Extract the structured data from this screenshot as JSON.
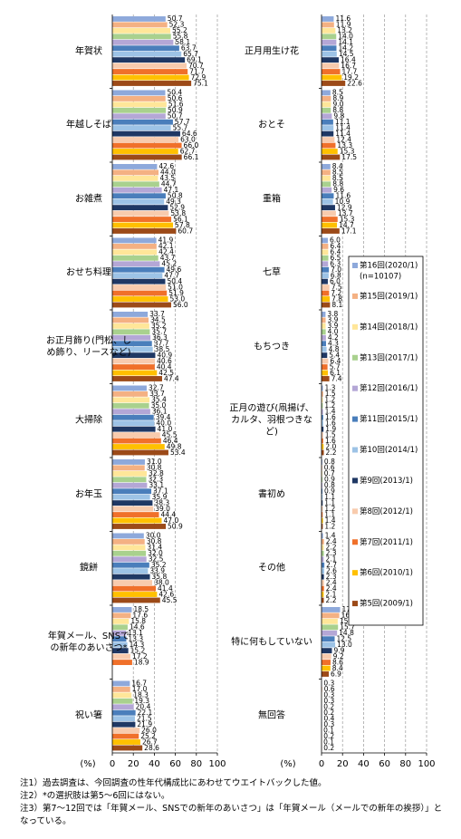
{
  "chart_data": {
    "type": "bar",
    "orientation": "horizontal",
    "categories": [
      "年賀状",
      "年越しそば",
      "お雑煮",
      "おせち料理",
      "お正月飾り(門松、しめ飾り、リースなど)",
      "大掃除",
      "お年玉",
      "鏡餅",
      "年賀メール、SNSでの新年のあいさつ*",
      "祝い箸",
      "正月用生け花",
      "おとそ",
      "重箱",
      "七草",
      "もちつき",
      "正月の遊び(凧揚げ、カルタ、羽根つきなど)",
      "書初め",
      "その他",
      "特に何もしていない",
      "無回答"
    ],
    "xlabel": "(%)",
    "xlim": [
      0,
      100
    ],
    "xticks": [
      0,
      20,
      40,
      60,
      80,
      100
    ],
    "grid": true,
    "series": [
      {
        "name": "第16回(2020/1)",
        "note": "(n=10107)",
        "color": "#8ea9db",
        "values": [
          50.7,
          50.4,
          42.6,
          41.9,
          33.7,
          32.7,
          31.0,
          30.0,
          18.5,
          16.7,
          11.6,
          8.5,
          8.4,
          6.0,
          3.8,
          1.3,
          0.8,
          1.4,
          17.7,
          0.3
        ],
        "value_labels": [
          "50.7",
          "50.4",
          "42.6",
          "41.9",
          "33.7",
          "32.7",
          "31.0",
          "30.0",
          "18.5",
          "16.7",
          "11.6",
          "8.5",
          "8.4",
          "6.0",
          "3.8",
          "1.3",
          "0.8",
          "1.4",
          "17.7",
          "0.3"
        ]
      },
      {
        "name": "第15回(2019/1)",
        "color": "#f4b183",
        "values": [
          52.3,
          50.6,
          44.0,
          42.1,
          34.5,
          33.7,
          30.8,
          30.8,
          17.6,
          17.0,
          11.9,
          8.9,
          8.5,
          6.4,
          3.9,
          1.5,
          0.6,
          2.4,
          16.9,
          0.6
        ],
        "value_labels": [
          "52.3",
          "50.6",
          "44.0",
          "42.1",
          "34.5",
          "33.7",
          "30.8",
          "30.8",
          "17.6",
          "17.0",
          "11.9",
          "8.9",
          "8.5",
          "6.4",
          "3.9",
          "1.5",
          "0.6",
          "2.4",
          "16.9",
          "0.6"
        ]
      },
      {
        "name": "第14回(2018/1)",
        "color": "#ffe699",
        "values": [
          55.2,
          51.6,
          43.5,
          42.4,
          35.2,
          35.4,
          32.8,
          31.4,
          15.8,
          18.3,
          13.2,
          9.0,
          8.5,
          6.4,
          3.9,
          1.2,
          0.7,
          2.2,
          15.4,
          0.3
        ],
        "value_labels": [
          "55.2",
          "51.6",
          "43.5",
          "42.4",
          "35.2",
          "35.4",
          "32.8",
          "31.4",
          "15.8",
          "18.3",
          "13.2",
          "9.0",
          "8.5",
          "6.4",
          "3.9",
          "1.2",
          "0.7",
          "2.2",
          "15.4",
          "0.3"
        ]
      },
      {
        "name": "第13回(2017/1)",
        "color": "#a9d18e",
        "values": [
          55.8,
          50.9,
          44.7,
          43.7,
          35.7,
          35.0,
          32.3,
          32.0,
          14.6,
          19.3,
          14.0,
          8.8,
          8.8,
          6.5,
          4.0,
          1.2,
          0.9,
          2.3,
          15.7,
          0.3
        ],
        "value_labels": [
          "55.8",
          "50.9",
          "44.7",
          "43.7",
          "35.7",
          "35.0",
          "32.3",
          "32.0",
          "14.6",
          "19.3",
          "14.0",
          "8.8",
          "8.8",
          "6.5",
          "4.0",
          "1.2",
          "0.9",
          "2.3",
          "15.7",
          "0.3"
        ]
      },
      {
        "name": "第12回(2016/1)",
        "color": "#b4a7d6",
        "values": [
          58.1,
          50.7,
          47.1,
          45.2,
          36.3,
          36.1,
          33.1,
          32.5,
          13.1,
          20.4,
          14.1,
          9.8,
          9.6,
          6.3,
          4.2,
          1.4,
          0.8,
          2.1,
          14.8,
          0.2
        ],
        "value_labels": [
          "58.1",
          "50.7",
          "47.1",
          "45.2",
          "36.3",
          "36.1",
          "33.1",
          "32.5",
          "13.1",
          "20.4",
          "14.1",
          "9.8",
          "9.6",
          "6.3",
          "4.2",
          "1.4",
          "0.8",
          "2.1",
          "14.8",
          "0.2"
        ]
      },
      {
        "name": "第11回(2015/1)",
        "color": "#4a7ebb",
        "values": [
          63.7,
          57.7,
          50.8,
          49.6,
          37.7,
          39.4,
          37.1,
          35.2,
          13.3,
          22.1,
          14.2,
          11.1,
          11.6,
          7.0,
          4.3,
          1.6,
          0.9,
          2.7,
          12.5,
          0.2
        ],
        "value_labels": [
          "63.7",
          "57.7",
          "50.8",
          "49.6",
          "37.7",
          "39.4",
          "37.1",
          "35.2",
          "13.3",
          "22.1",
          "14.2",
          "11.1",
          "11.6",
          "7.0",
          "4.3",
          "1.6",
          "0.9",
          "2.7",
          "12.5",
          "0.2"
        ]
      },
      {
        "name": "第10回(2014/1)",
        "color": "#9dc3e6",
        "values": [
          65.7,
          55.7,
          49.3,
          47.7,
          38.5,
          40.0,
          35.9,
          33.9,
          14.3,
          21.5,
          14.5,
          11.4,
          10.9,
          6.8,
          4.8,
          1.6,
          1.1,
          2.6,
          13.0,
          0.4
        ],
        "value_labels": [
          "65.7",
          "55.7",
          "49.3",
          "47.7",
          "38.5",
          "40.0",
          "35.9",
          "33.9",
          "14.3",
          "21.5",
          "14.5",
          "11.4",
          "10.9",
          "6.8",
          "4.8",
          "1.6",
          "1.1",
          "2.6",
          "13.0",
          "0.4"
        ]
      },
      {
        "name": "第9回(2013/1)",
        "color": "#1f3864",
        "values": [
          69.1,
          64.6,
          52.9,
          50.4,
          40.9,
          41.0,
          38.3,
          35.8,
          15.2,
          21.9,
          16.4,
          11.4,
          12.9,
          6.0,
          5.4,
          1.9,
          1.1,
          2.3,
          9.9,
          0.3
        ],
        "value_labels": [
          "69.1",
          "64.6",
          "52.9",
          "50.4",
          "40.9",
          "41.0",
          "38.3",
          "35.8",
          "15.2",
          "21.9",
          "16.4",
          "11.4",
          "12.9",
          "6.0",
          "5.4",
          "1.9",
          "1.1",
          "2.3",
          "9.9",
          "0.3"
        ]
      },
      {
        "name": "第8回(2012/1)",
        "color": "#f8cbad",
        "values": [
          70.7,
          63.0,
          53.8,
          51.0,
          40.6,
          45.5,
          39.0,
          38.0,
          17.2,
          26.0,
          16.7,
          12.4,
          13.7,
          7.5,
          6.4,
          1.5,
          1.2,
          2.4,
          9.2,
          0.1
        ],
        "value_labels": [
          "70.7",
          "63.0",
          "53.8",
          "51.0",
          "40.6",
          "45.5",
          "39.0",
          "38.0",
          "17.2",
          "26.0",
          "16.7",
          "12.4",
          "13.7",
          "7.5",
          "6.4",
          "1.5",
          "1.2",
          "2.4",
          "9.2",
          "0.1"
        ]
      },
      {
        "name": "第7回(2011/1)",
        "color": "#f0702a",
        "values": [
          71.7,
          66.0,
          56.1,
          51.9,
          40.4,
          46.4,
          44.4,
          41.4,
          18.9,
          25.2,
          17.7,
          13.3,
          15.3,
          7.2,
          5.7,
          1.6,
          1.1,
          2.4,
          8.6,
          0.2
        ],
        "value_labels": [
          "71.7",
          "66.0",
          "56.1",
          "51.9",
          "40.4",
          "46.4",
          "44.4",
          "41.4",
          "18.9",
          "25.2",
          "17.7",
          "13.3",
          "15.3",
          "7.2",
          "5.7",
          "1.6",
          "1.1",
          "2.4",
          "8.6",
          "0.2"
        ]
      },
      {
        "name": "第6回(2010/1)",
        "color": "#ffc000",
        "values": [
          72.9,
          62.7,
          57.8,
          53.0,
          42.5,
          49.8,
          47.0,
          42.6,
          null,
          26.7,
          19.2,
          15.3,
          14.7,
          7.8,
          6.1,
          2.0,
          1.4,
          2.1,
          8.4,
          0.1
        ],
        "value_labels": [
          "72.9",
          "62.7",
          "57.8",
          "53.0",
          "42.5",
          "49.8",
          "47.0",
          "42.6",
          null,
          "26.7",
          "19.2",
          "15.3",
          "14.7",
          "7.8",
          "6.1",
          "2.0",
          "1.4",
          "2.1",
          "8.4",
          "0.1"
        ]
      },
      {
        "name": "第5回(2009/1)",
        "color": "#9c4a18",
        "values": [
          75.1,
          66.1,
          60.7,
          56.0,
          47.4,
          53.4,
          50.9,
          45.5,
          null,
          28.6,
          22.6,
          17.5,
          17.1,
          8.1,
          7.4,
          2.2,
          1.2,
          2.2,
          6.9,
          0.2
        ],
        "value_labels": [
          "75.1",
          "66.1",
          "60.7",
          "56.0",
          "47.4",
          "53.4",
          "50.9",
          "45.5",
          null,
          "28.6",
          "22.6",
          "17.5",
          "17.1",
          "8.1",
          "7.4",
          "2.2",
          "1.2",
          "2.2",
          "6.9",
          "0.2"
        ]
      }
    ],
    "notes": [
      "注1）過去調査は、今回調査の性年代構成比にあわせてウエイトバックした値。",
      "注2）*の選択肢は第5～6回にはない。",
      "注3）第7～12回では「年賀メール、SNSでの新年のあいさつ」は「年賀メール（メールでの新年の挨拶）」となっている。"
    ]
  }
}
